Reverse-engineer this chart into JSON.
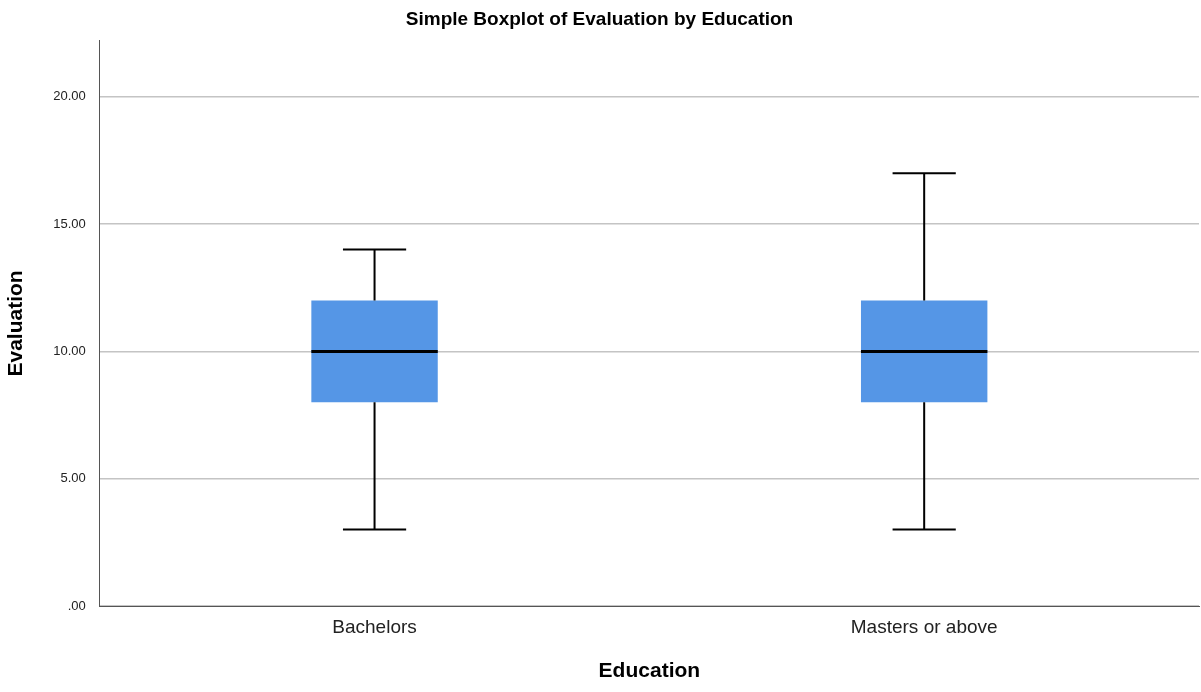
{
  "chart_data": {
    "type": "box",
    "title": "Simple Boxplot of Evaluation by Education",
    "xlabel": "Education",
    "ylabel": "Evaluation",
    "categories": [
      "Bachelors",
      "Masters or above"
    ],
    "boxes": [
      {
        "low": 3,
        "q1": 8,
        "median": 10,
        "q3": 12,
        "high": 14
      },
      {
        "low": 3,
        "q1": 8,
        "median": 10,
        "q3": 12,
        "high": 17
      }
    ],
    "color": "#5596e6",
    "ylim": [
      0,
      22.2
    ],
    "yticks": [
      {
        "value": 0,
        "label": ".00"
      },
      {
        "value": 5,
        "label": "5.00"
      },
      {
        "value": 10,
        "label": "10.00"
      },
      {
        "value": 15,
        "label": "15.00"
      },
      {
        "value": 20,
        "label": "20.00"
      }
    ],
    "grid": "y",
    "legend": false
  }
}
